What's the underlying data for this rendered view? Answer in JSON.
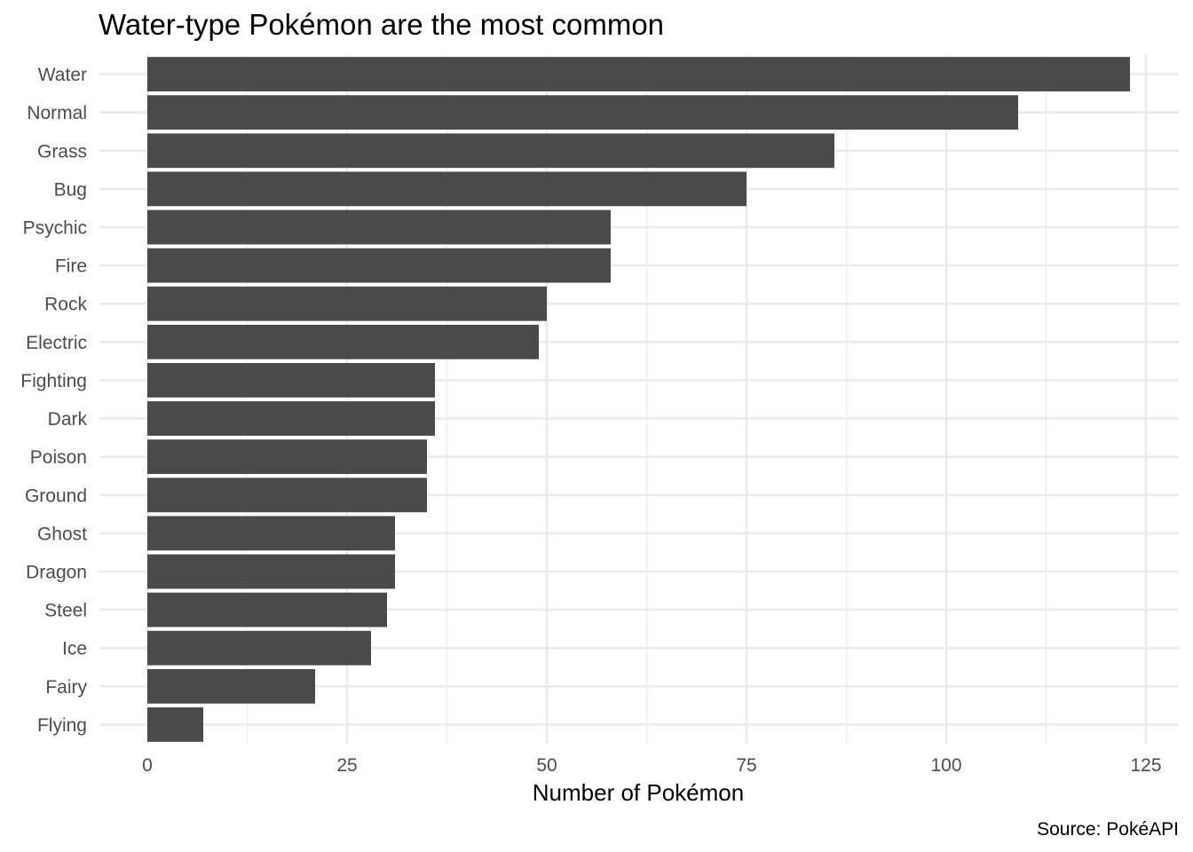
{
  "chart_data": {
    "type": "bar",
    "orientation": "horizontal",
    "title": "Water-type Pokémon are the most common",
    "xlabel": "Number of Pokémon",
    "ylabel": "",
    "caption": "Source: PokéAPI",
    "categories": [
      "Water",
      "Normal",
      "Grass",
      "Bug",
      "Psychic",
      "Fire",
      "Rock",
      "Electric",
      "Fighting",
      "Dark",
      "Poison",
      "Ground",
      "Ghost",
      "Dragon",
      "Steel",
      "Ice",
      "Fairy",
      "Flying"
    ],
    "values": [
      123,
      109,
      86,
      75,
      58,
      58,
      50,
      49,
      36,
      36,
      35,
      35,
      31,
      31,
      30,
      28,
      21,
      7
    ],
    "xlim": [
      0,
      129
    ],
    "x_ticks": [
      0,
      25,
      50,
      75,
      100,
      125
    ],
    "grid": true,
    "bar_color": "#4a4a4a",
    "grid_color": "#ebebeb"
  }
}
